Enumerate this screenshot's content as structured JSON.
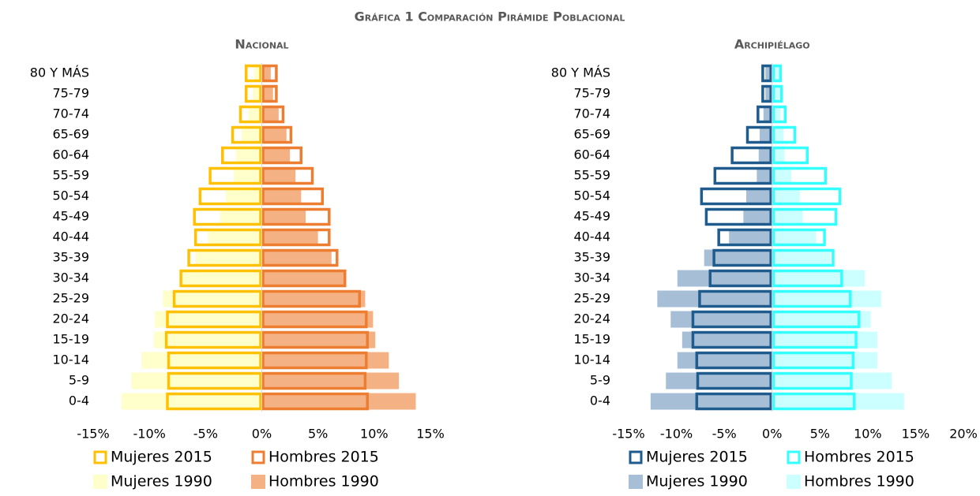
{
  "title": "Gráfica 1 Comparación Pirámide Poblacional",
  "chart_data": [
    {
      "type": "pyramid",
      "title": "Nacional",
      "categories": [
        "0-4",
        "5-9",
        "10-14",
        "15-19",
        "20-24",
        "25-29",
        "30-34",
        "35-39",
        "40-44",
        "45-49",
        "50-54",
        "55-59",
        "60-64",
        "65-69",
        "70-74",
        "75-79",
        "80 Y MÁS"
      ],
      "xlim": [
        -15,
        15
      ],
      "xticks": [
        {
          "value": -15,
          "label": "-15%"
        },
        {
          "value": -10,
          "label": "-10%"
        },
        {
          "value": -5,
          "label": "-5%"
        },
        {
          "value": 0,
          "label": "0%"
        },
        {
          "value": 5,
          "label": "5%"
        },
        {
          "value": 10,
          "label": "10%"
        },
        {
          "value": 15,
          "label": "15%"
        }
      ],
      "series": [
        {
          "name": "Mujeres 2015",
          "color": "#ffc000",
          "outline": true,
          "values": [
            -8.5,
            -8.4,
            -8.4,
            -8.6,
            -8.5,
            -7.9,
            -7.3,
            -6.6,
            -6.0,
            -6.1,
            -5.6,
            -4.7,
            -3.6,
            -2.7,
            -2.0,
            -1.5,
            -1.5
          ]
        },
        {
          "name": "Hombres 2015",
          "color": "#ed7d31",
          "outline": true,
          "values": [
            9.5,
            9.3,
            9.4,
            9.5,
            9.4,
            8.8,
            7.5,
            6.8,
            6.1,
            6.1,
            5.5,
            4.6,
            3.6,
            2.7,
            2.0,
            1.4,
            1.4
          ]
        },
        {
          "name": "Mujeres 1990",
          "color": "#ffffcc",
          "outline": false,
          "values": [
            -12.5,
            -11.6,
            -10.7,
            -9.6,
            -9.5,
            -8.8,
            -7.3,
            -5.9,
            -4.8,
            -3.7,
            -3.2,
            -2.5,
            -2.3,
            -1.8,
            -1.2,
            -0.8,
            -0.7
          ]
        },
        {
          "name": "Hombres 1990",
          "color": "#f4b183",
          "outline": false,
          "values": [
            13.7,
            12.2,
            11.3,
            10.1,
            9.9,
            9.2,
            7.5,
            6.2,
            5.0,
            3.9,
            3.5,
            3.0,
            2.5,
            2.2,
            1.5,
            1.0,
            0.8
          ]
        }
      ]
    },
    {
      "type": "pyramid",
      "title": "Archipiélago",
      "categories": [
        "0-4",
        "5-9",
        "10-14",
        "15-19",
        "20-24",
        "25-29",
        "30-34",
        "35-39",
        "40-44",
        "45-49",
        "50-54",
        "55-59",
        "60-64",
        "65-69",
        "70-74",
        "75-79",
        "80 Y MÁS"
      ],
      "xlim": [
        -15,
        20
      ],
      "xticks": [
        {
          "value": -15,
          "label": "-15%"
        },
        {
          "value": -10,
          "label": "-10%"
        },
        {
          "value": -5,
          "label": "-5%"
        },
        {
          "value": 0,
          "label": "0%"
        },
        {
          "value": 5,
          "label": "5%"
        },
        {
          "value": 10,
          "label": "10%"
        },
        {
          "value": 15,
          "label": "15%"
        },
        {
          "value": 20,
          "label": "20%"
        }
      ],
      "series": [
        {
          "name": "Mujeres 2015",
          "color": "#1f5b8c",
          "outline": true,
          "values": [
            -8.0,
            -7.9,
            -8.0,
            -8.4,
            -8.4,
            -7.7,
            -6.6,
            -6.2,
            -5.7,
            -7.0,
            -7.5,
            -6.1,
            -4.3,
            -2.7,
            -1.6,
            -1.1,
            -1.1
          ]
        },
        {
          "name": "Hombres 2015",
          "color": "#33ffff",
          "outline": true,
          "values": [
            8.7,
            8.4,
            8.6,
            8.9,
            9.2,
            8.3,
            7.4,
            6.5,
            5.6,
            6.8,
            7.2,
            5.7,
            3.8,
            2.5,
            1.5,
            1.1,
            1.0
          ]
        },
        {
          "name": "Mujeres 1990",
          "color": "#a7bfd6",
          "outline": false,
          "values": [
            -12.7,
            -11.1,
            -9.9,
            -9.4,
            -10.6,
            -12.0,
            -9.9,
            -7.1,
            -4.5,
            -3.0,
            -2.7,
            -1.6,
            -1.4,
            -1.3,
            -0.9,
            -0.7,
            -0.7
          ]
        },
        {
          "name": "Hombres 1990",
          "color": "#ccffff",
          "outline": false,
          "values": [
            13.8,
            12.5,
            11.0,
            11.0,
            10.3,
            11.4,
            9.7,
            6.1,
            4.6,
            3.2,
            2.9,
            2.0,
            1.3,
            1.2,
            0.9,
            0.8,
            0.7
          ]
        }
      ]
    }
  ]
}
